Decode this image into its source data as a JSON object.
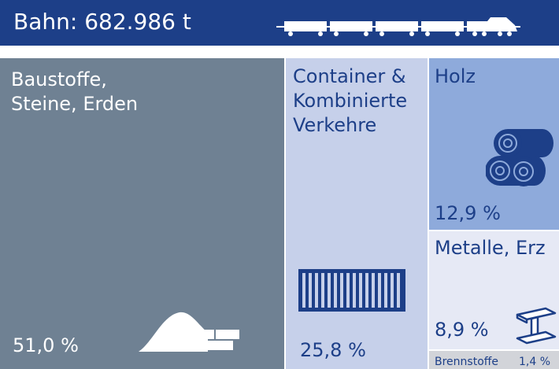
{
  "header": {
    "title": "Bahn: 682.986 t",
    "train_icon": "freight-train-icon"
  },
  "chart_data": {
    "type": "treemap",
    "title": "Bahn: 682.986 t",
    "unit": "%",
    "categories": [
      {
        "name": "Baustoffe, Steine, Erden",
        "label_lines": [
          "Baustoffe,",
          "Steine, Erden"
        ],
        "value": 51.0,
        "value_label": "51,0 %",
        "color": "#6f8193",
        "icon": "sand-pile-bricks-icon"
      },
      {
        "name": "Container & Kombinierte Verkehre",
        "label_lines": [
          "Container &",
          "Kombinierte",
          "Verkehre"
        ],
        "value": 25.8,
        "value_label": "25,8 %",
        "color": "#c6d0ea",
        "icon": "shipping-container-icon"
      },
      {
        "name": "Holz",
        "label_lines": [
          "Holz"
        ],
        "value": 12.9,
        "value_label": "12,9 %",
        "color": "#8eaadb",
        "icon": "logs-icon"
      },
      {
        "name": "Metalle, Erz",
        "label_lines": [
          "Metalle, Erz"
        ],
        "value": 8.9,
        "value_label": "8,9 %",
        "color": "#e6e9f5",
        "icon": "steel-beam-icon"
      },
      {
        "name": "Brennstoffe",
        "label_lines": [
          "Brennstoffe"
        ],
        "value": 1.4,
        "value_label": "1,4 %",
        "color": "#d2d4d9",
        "icon": ""
      }
    ]
  },
  "colors": {
    "header_bg": "#1d3f88",
    "text_dark": "#1d3f88",
    "text_light": "#ffffff"
  }
}
